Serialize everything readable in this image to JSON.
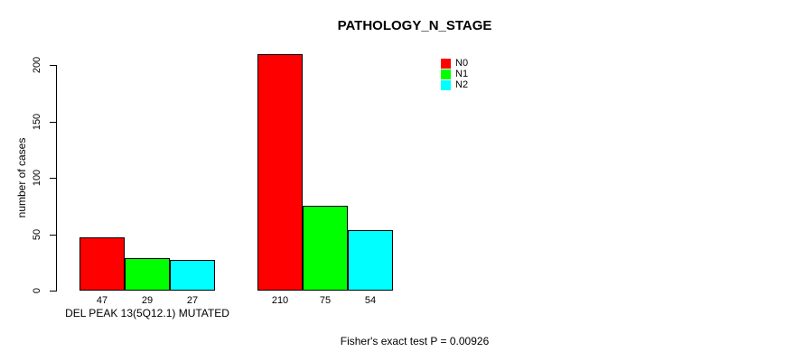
{
  "chart_data": {
    "type": "bar",
    "title": "PATHOLOGY_N_STAGE",
    "ylabel": "number of cases",
    "xlabel": "",
    "ylim": [
      0,
      200
    ],
    "yticks": [
      0,
      50,
      100,
      150,
      200
    ],
    "grid": false,
    "legend_position": "top-right-inside",
    "categories": [
      "DEL PEAK 13(5Q12.1) MUTATED",
      ""
    ],
    "series": [
      {
        "name": "N0",
        "color": "#FF0000",
        "values": [
          47,
          210
        ]
      },
      {
        "name": "N1",
        "color": "#00FF00",
        "values": [
          29,
          75
        ]
      },
      {
        "name": "N2",
        "color": "#00FFFF",
        "values": [
          27,
          54
        ]
      }
    ],
    "bar_value_labels": [
      [
        "47",
        "29",
        "27"
      ],
      [
        "210",
        "75",
        "54"
      ]
    ],
    "annotation": "Fisher's exact test P = 0.00926",
    "colors": {
      "background": "#FFFFFF",
      "axis": "#000000",
      "text": "#000000"
    }
  }
}
